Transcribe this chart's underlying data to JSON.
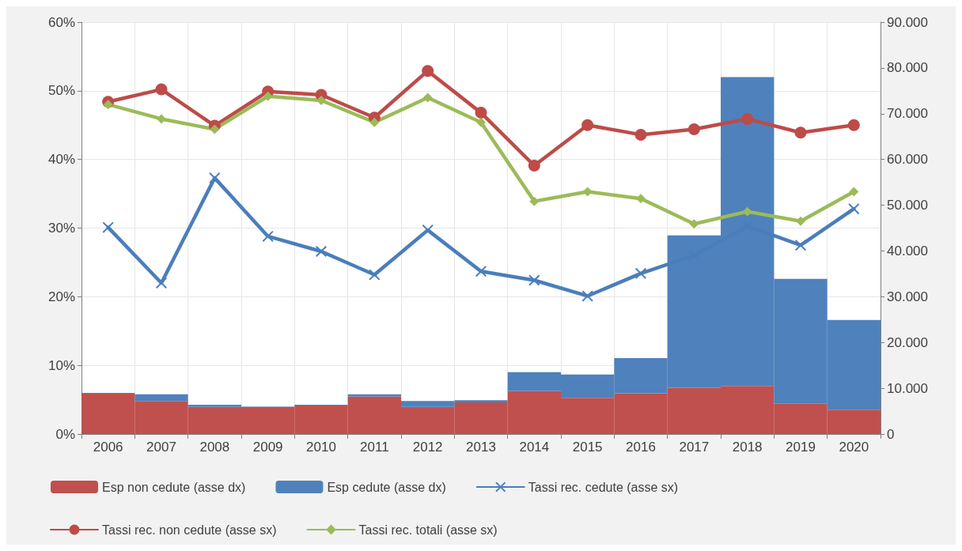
{
  "chart_data": {
    "type": "bar",
    "stacked": true,
    "grid": true,
    "legend": "bottom",
    "categories": [
      "2006",
      "2007",
      "2008",
      "2009",
      "2010",
      "2011",
      "2012",
      "2013",
      "2014",
      "2015",
      "2016",
      "2017",
      "2018",
      "2019",
      "2020"
    ],
    "ylim": [
      0,
      60
    ],
    "yticks": [
      {
        "value": 0,
        "label": "0%"
      },
      {
        "value": 10,
        "label": "10%"
      },
      {
        "value": 20,
        "label": "20%"
      },
      {
        "value": 30,
        "label": "30%"
      },
      {
        "value": 40,
        "label": "40%"
      },
      {
        "value": 50,
        "label": "50%"
      },
      {
        "value": 60,
        "label": "60%"
      }
    ],
    "y2lim": [
      0,
      90000
    ],
    "y2ticks": [
      0,
      {
        "value": 10000,
        "label": "10.000"
      },
      {
        "value": 20000,
        "label": "20.000"
      },
      {
        "value": 30000,
        "label": "30.000"
      },
      {
        "value": 40000,
        "label": "40.000"
      },
      {
        "value": 50000,
        "label": "50.000"
      },
      {
        "value": 60000,
        "label": "60.000"
      },
      {
        "value": 70000,
        "label": "70.000"
      },
      {
        "value": 80000,
        "label": "80.000"
      },
      {
        "value": 90000,
        "label": "90.000"
      }
    ],
    "series": [
      {
        "name": "Esp non cedute (asse dx)",
        "axis": "y2",
        "color": "#c0504d",
        "values": [
          8800,
          7200,
          5900,
          5900,
          6200,
          8200,
          5900,
          6900,
          9400,
          7900,
          8900,
          10100,
          10500,
          6600,
          5300
        ]
      },
      {
        "name": "Esp cedute (asse dx)",
        "axis": "y2",
        "color": "#4f81bd",
        "values": [
          200,
          1500,
          500,
          100,
          200,
          500,
          1300,
          500,
          4100,
          5100,
          7700,
          33300,
          67500,
          27300,
          19600
        ]
      },
      {
        "name": "Tassi rec. cedute (asse sx)",
        "type": "line",
        "axis": "y",
        "color": "#4a7ebb",
        "marker": "cross",
        "values": [
          30.1,
          22.0,
          37.3,
          28.8,
          26.6,
          23.2,
          29.7,
          23.7,
          22.4,
          20.1,
          23.4,
          26.0,
          30.3,
          27.5,
          32.8
        ]
      },
      {
        "name": "Tassi rec. non cedute (asse sx)",
        "type": "line",
        "axis": "y",
        "color": "#be4b48",
        "marker": "circle",
        "values": [
          48.4,
          50.2,
          44.9,
          49.9,
          49.4,
          46.1,
          52.9,
          46.8,
          39.1,
          45.0,
          43.6,
          44.4,
          45.9,
          43.9,
          45.0
        ]
      },
      {
        "name": "Tassi rec. totali (asse sx)",
        "type": "line",
        "axis": "y",
        "color": "#9bbb59",
        "marker": "diamond",
        "values": [
          48.0,
          45.9,
          44.4,
          49.2,
          48.6,
          45.4,
          49.0,
          45.4,
          33.9,
          35.3,
          34.3,
          30.6,
          32.4,
          31.0,
          35.3
        ]
      }
    ]
  }
}
